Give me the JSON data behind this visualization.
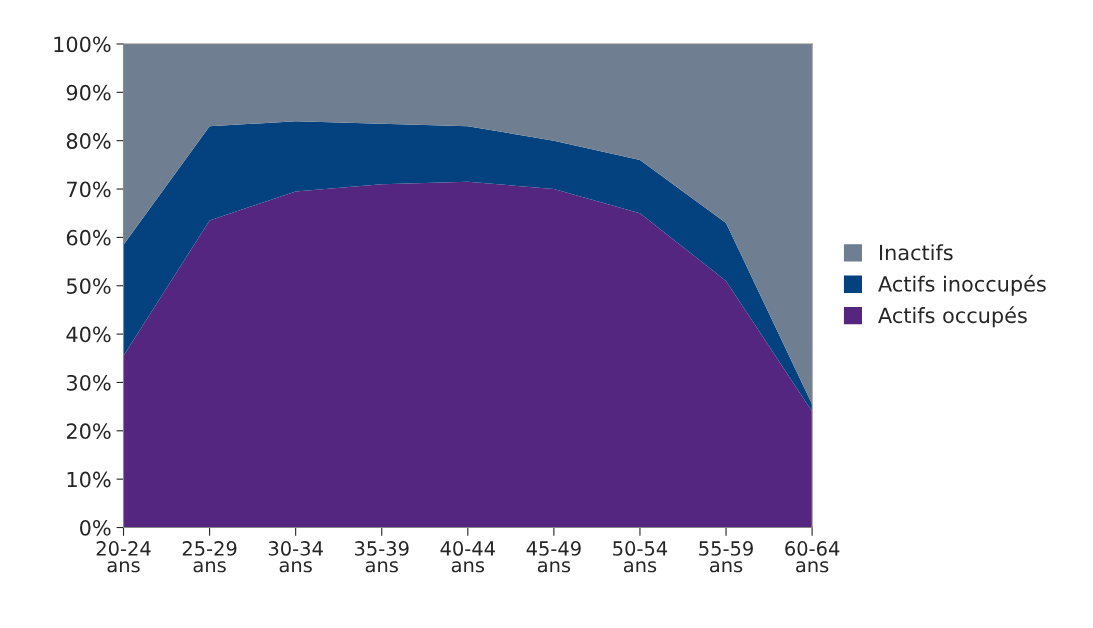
{
  "chart_data": {
    "type": "area",
    "stacked": true,
    "categories": [
      "20-24\nans",
      "25-29\nans",
      "30-34\nans",
      "35-39\nans",
      "40-44\nans",
      "45-49\nans",
      "50-54\nans",
      "55-59\nans",
      "60-64\nans"
    ],
    "series": [
      {
        "name": "Actifs occupés",
        "color": "#55267f",
        "values": [
          35.5,
          63.5,
          69.5,
          71,
          71.5,
          70,
          65,
          51,
          24
        ]
      },
      {
        "name": "Actifs inoccupés",
        "color": "#03427f",
        "values": [
          23,
          19.5,
          14.5,
          12.5,
          11.5,
          10,
          11,
          12,
          1.5
        ]
      },
      {
        "name": "Inactifs",
        "color": "#6f7f91",
        "values": [
          41.5,
          17,
          16,
          16.5,
          17,
          20,
          24,
          37,
          74.5
        ]
      }
    ],
    "ylim": [
      0,
      100
    ],
    "yticks": [
      {
        "value": 0,
        "label": "0%"
      },
      {
        "value": 10,
        "label": "10%"
      },
      {
        "value": 20,
        "label": "20%"
      },
      {
        "value": 30,
        "label": "30%"
      },
      {
        "value": 40,
        "label": "40%"
      },
      {
        "value": 50,
        "label": "50%"
      },
      {
        "value": 60,
        "label": "60%"
      },
      {
        "value": 70,
        "label": "70%"
      },
      {
        "value": 80,
        "label": "80%"
      },
      {
        "value": 90,
        "label": "90%"
      },
      {
        "value": 100,
        "label": "100%"
      }
    ],
    "grid": false,
    "legend": "right"
  }
}
